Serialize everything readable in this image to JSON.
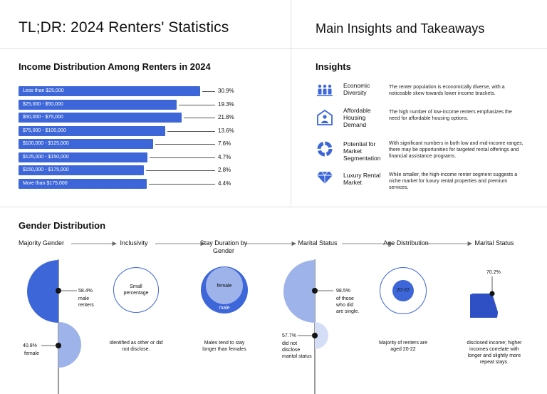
{
  "header": {
    "left_title": "TL;DR: 2024 Renters' Statistics",
    "right_title": "Main Insights and Takeaways"
  },
  "income": {
    "title": "Income Distribution Among Renters in 2024"
  },
  "chart_data": {
    "type": "bar",
    "orientation": "horizontal",
    "title": "Income Distribution Among Renters in 2024",
    "categories": [
      "Less than $25,000",
      "$25,000 - $50,000",
      "$50,000 - $75,000",
      "$75,000 - $100,000",
      "$100,000 - $125,000",
      "$125,000 - $150,000",
      "$150,000 - $175,000",
      "More than $175,000"
    ],
    "values": [
      30.9,
      19.3,
      21.8,
      13.6,
      7.6,
      4.7,
      2.8,
      4.4
    ],
    "value_labels": [
      "30.9%",
      "19.3%",
      "21.8%",
      "13.6%",
      "7.6%",
      "4.7%",
      "2.8%",
      "4.4%"
    ],
    "color": "#3d66d9"
  },
  "insights": {
    "title": "Insights",
    "items": [
      {
        "icon": "group-icon",
        "title": "Economic Diversity",
        "desc": "The renter population is economically diverse, with a noticeable skew towards lower income brackets."
      },
      {
        "icon": "house-person-icon",
        "title": "Affordable Housing Demand",
        "desc": "The high number of low-income renters emphasizes the need for affordable housing options."
      },
      {
        "icon": "segment-ring-icon",
        "title": "Potential for Market Segmentation",
        "desc": "With significant numbers in both low and mid-income ranges, there may be opportunities for targeted rental offerings and financial assistance programs."
      },
      {
        "icon": "diamond-icon",
        "title": "Luxury Rental Market",
        "desc": "While smaller, the high-income renter segment suggests a niche market for luxury rental properties and premium services."
      }
    ]
  },
  "gender": {
    "title": "Gender Distribution",
    "columns": {
      "majority": "Majority Gender",
      "inclusivity": "Inclusivity",
      "stay": "Stay Duration by Gender",
      "marital": "Marital Status",
      "age": "Age Distribution",
      "marital2": "Marital Status"
    },
    "majority": {
      "male_pct": "58.4%",
      "male_label": "male renters",
      "female_pct": "40.8%",
      "female_label": "female",
      "male_value": 58.4,
      "female_value": 40.8
    },
    "inclusivity": {
      "circle_text": "Small percentage",
      "caption": "Identified as other or did not disclose."
    },
    "stay": {
      "outer_label": "female",
      "inner_label": "male",
      "caption": "Males tend to stay longer than females"
    },
    "marital": {
      "single_pct": "98.5%",
      "single_label": "of those who did are single.",
      "undisclosed_pct": "57.7%",
      "undisclosed_label": "did not disclose marital status",
      "single_value": 98.5,
      "undisclosed_value": 57.7
    },
    "age": {
      "circle_text": "20-22",
      "caption": "Majority of renters are aged 20-22"
    },
    "marital2": {
      "pct": "70.2%",
      "value": 70.2,
      "caption": "disclosed income; higher incomes correlate with longer and slightly more repeat stays."
    }
  },
  "colors": {
    "primary": "#3d66d9",
    "light": "#9db3ea",
    "pale": "#d4def7"
  }
}
